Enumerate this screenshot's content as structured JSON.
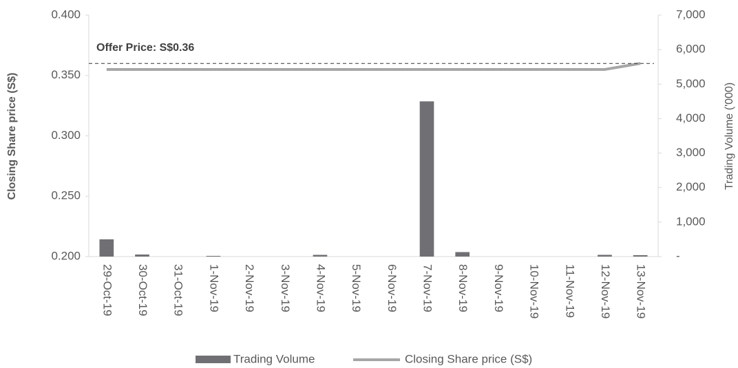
{
  "chart_data": {
    "type": "combo",
    "categories": [
      "29-Oct-19",
      "30-Oct-19",
      "31-Oct-19",
      "1-Nov-19",
      "2-Nov-19",
      "3-Nov-19",
      "4-Nov-19",
      "5-Nov-19",
      "6-Nov-19",
      "7-Nov-19",
      "8-Nov-19",
      "9-Nov-19",
      "10-Nov-19",
      "11-Nov-19",
      "12-Nov-19",
      "13-Nov-19"
    ],
    "series": [
      {
        "name": "Trading Volume",
        "type": "bar",
        "axis": "y2",
        "color": "#707074",
        "values": [
          500,
          60,
          0,
          20,
          0,
          0,
          50,
          0,
          0,
          4500,
          130,
          0,
          0,
          0,
          50,
          40
        ]
      },
      {
        "name": "Closing Share price (S$)",
        "type": "line",
        "axis": "y",
        "color": "#a6a6a6",
        "values": [
          0.355,
          0.355,
          0.355,
          0.355,
          0.355,
          0.355,
          0.355,
          0.355,
          0.355,
          0.355,
          0.355,
          0.355,
          0.355,
          0.355,
          0.355,
          0.36
        ]
      }
    ],
    "ylabel": "Closing Share price (S$)",
    "y2label": "Trading Volume ('000)",
    "ylim": [
      0.2,
      0.4
    ],
    "yticks": [
      {
        "value": 0.2,
        "label": "0.200"
      },
      {
        "value": 0.25,
        "label": "0.250"
      },
      {
        "value": 0.3,
        "label": "0.300"
      },
      {
        "value": 0.35,
        "label": "0.350"
      },
      {
        "value": 0.4,
        "label": "0.400"
      }
    ],
    "y2lim": [
      0,
      7000
    ],
    "y2ticks": [
      {
        "value": 0,
        "label": "-"
      },
      {
        "value": 1000,
        "label": "1,000"
      },
      {
        "value": 2000,
        "label": "2,000"
      },
      {
        "value": 3000,
        "label": "3,000"
      },
      {
        "value": 4000,
        "label": "4,000"
      },
      {
        "value": 5000,
        "label": "5,000"
      },
      {
        "value": 6000,
        "label": "6,000"
      },
      {
        "value": 7000,
        "label": "7,000"
      }
    ],
    "reference_line": {
      "label": "Offer Price: S$0.36",
      "value": 0.36
    },
    "legend": "bottom"
  }
}
